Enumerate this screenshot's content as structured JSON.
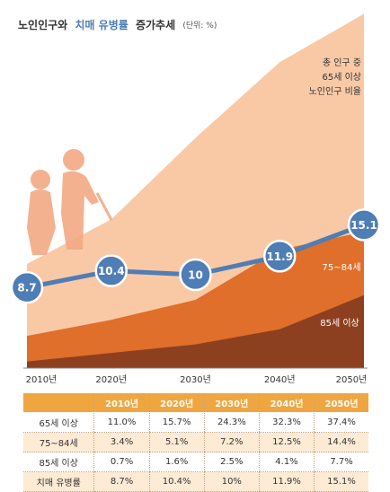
{
  "chart_data": {
    "type": "area",
    "title_parts": [
      "노인인구와",
      "치매 유병률",
      "증가추세",
      "(단위: %)"
    ],
    "annotation": [
      "총 인구 중",
      "65세 이상",
      "노인인구 비율"
    ],
    "categories": [
      "2010년",
      "2020년",
      "2030년",
      "2040년",
      "2050년"
    ],
    "series": [
      {
        "name": "65세 이상",
        "color": "#f9c9a6",
        "values": [
          11.0,
          15.7,
          24.3,
          32.3,
          37.4
        ],
        "value_labels": [
          "11.0%",
          "15.7%",
          "24.3%",
          "32.3%",
          "37.4%"
        ]
      },
      {
        "name": "75~84세",
        "color": "#df6f2a",
        "values": [
          3.4,
          5.1,
          7.2,
          12.5,
          14.4
        ],
        "value_labels": [
          "3.4%",
          "5.1%",
          "7.2%",
          "12.5%",
          "14.4%"
        ]
      },
      {
        "name": "85세 이상",
        "color": "#8d4020",
        "values": [
          0.7,
          1.6,
          2.5,
          4.1,
          7.7
        ],
        "value_labels": [
          "0.7%",
          "1.6%",
          "2.5%",
          "4.1%",
          "7.7%"
        ]
      },
      {
        "name": "치매 유병률",
        "color": "#4f7db5",
        "type": "line",
        "values": [
          8.7,
          10.4,
          10,
          11.9,
          15.1
        ],
        "value_labels": [
          "8.7%",
          "10.4%",
          "10%",
          "11.9%",
          "15.1%"
        ]
      }
    ]
  }
}
